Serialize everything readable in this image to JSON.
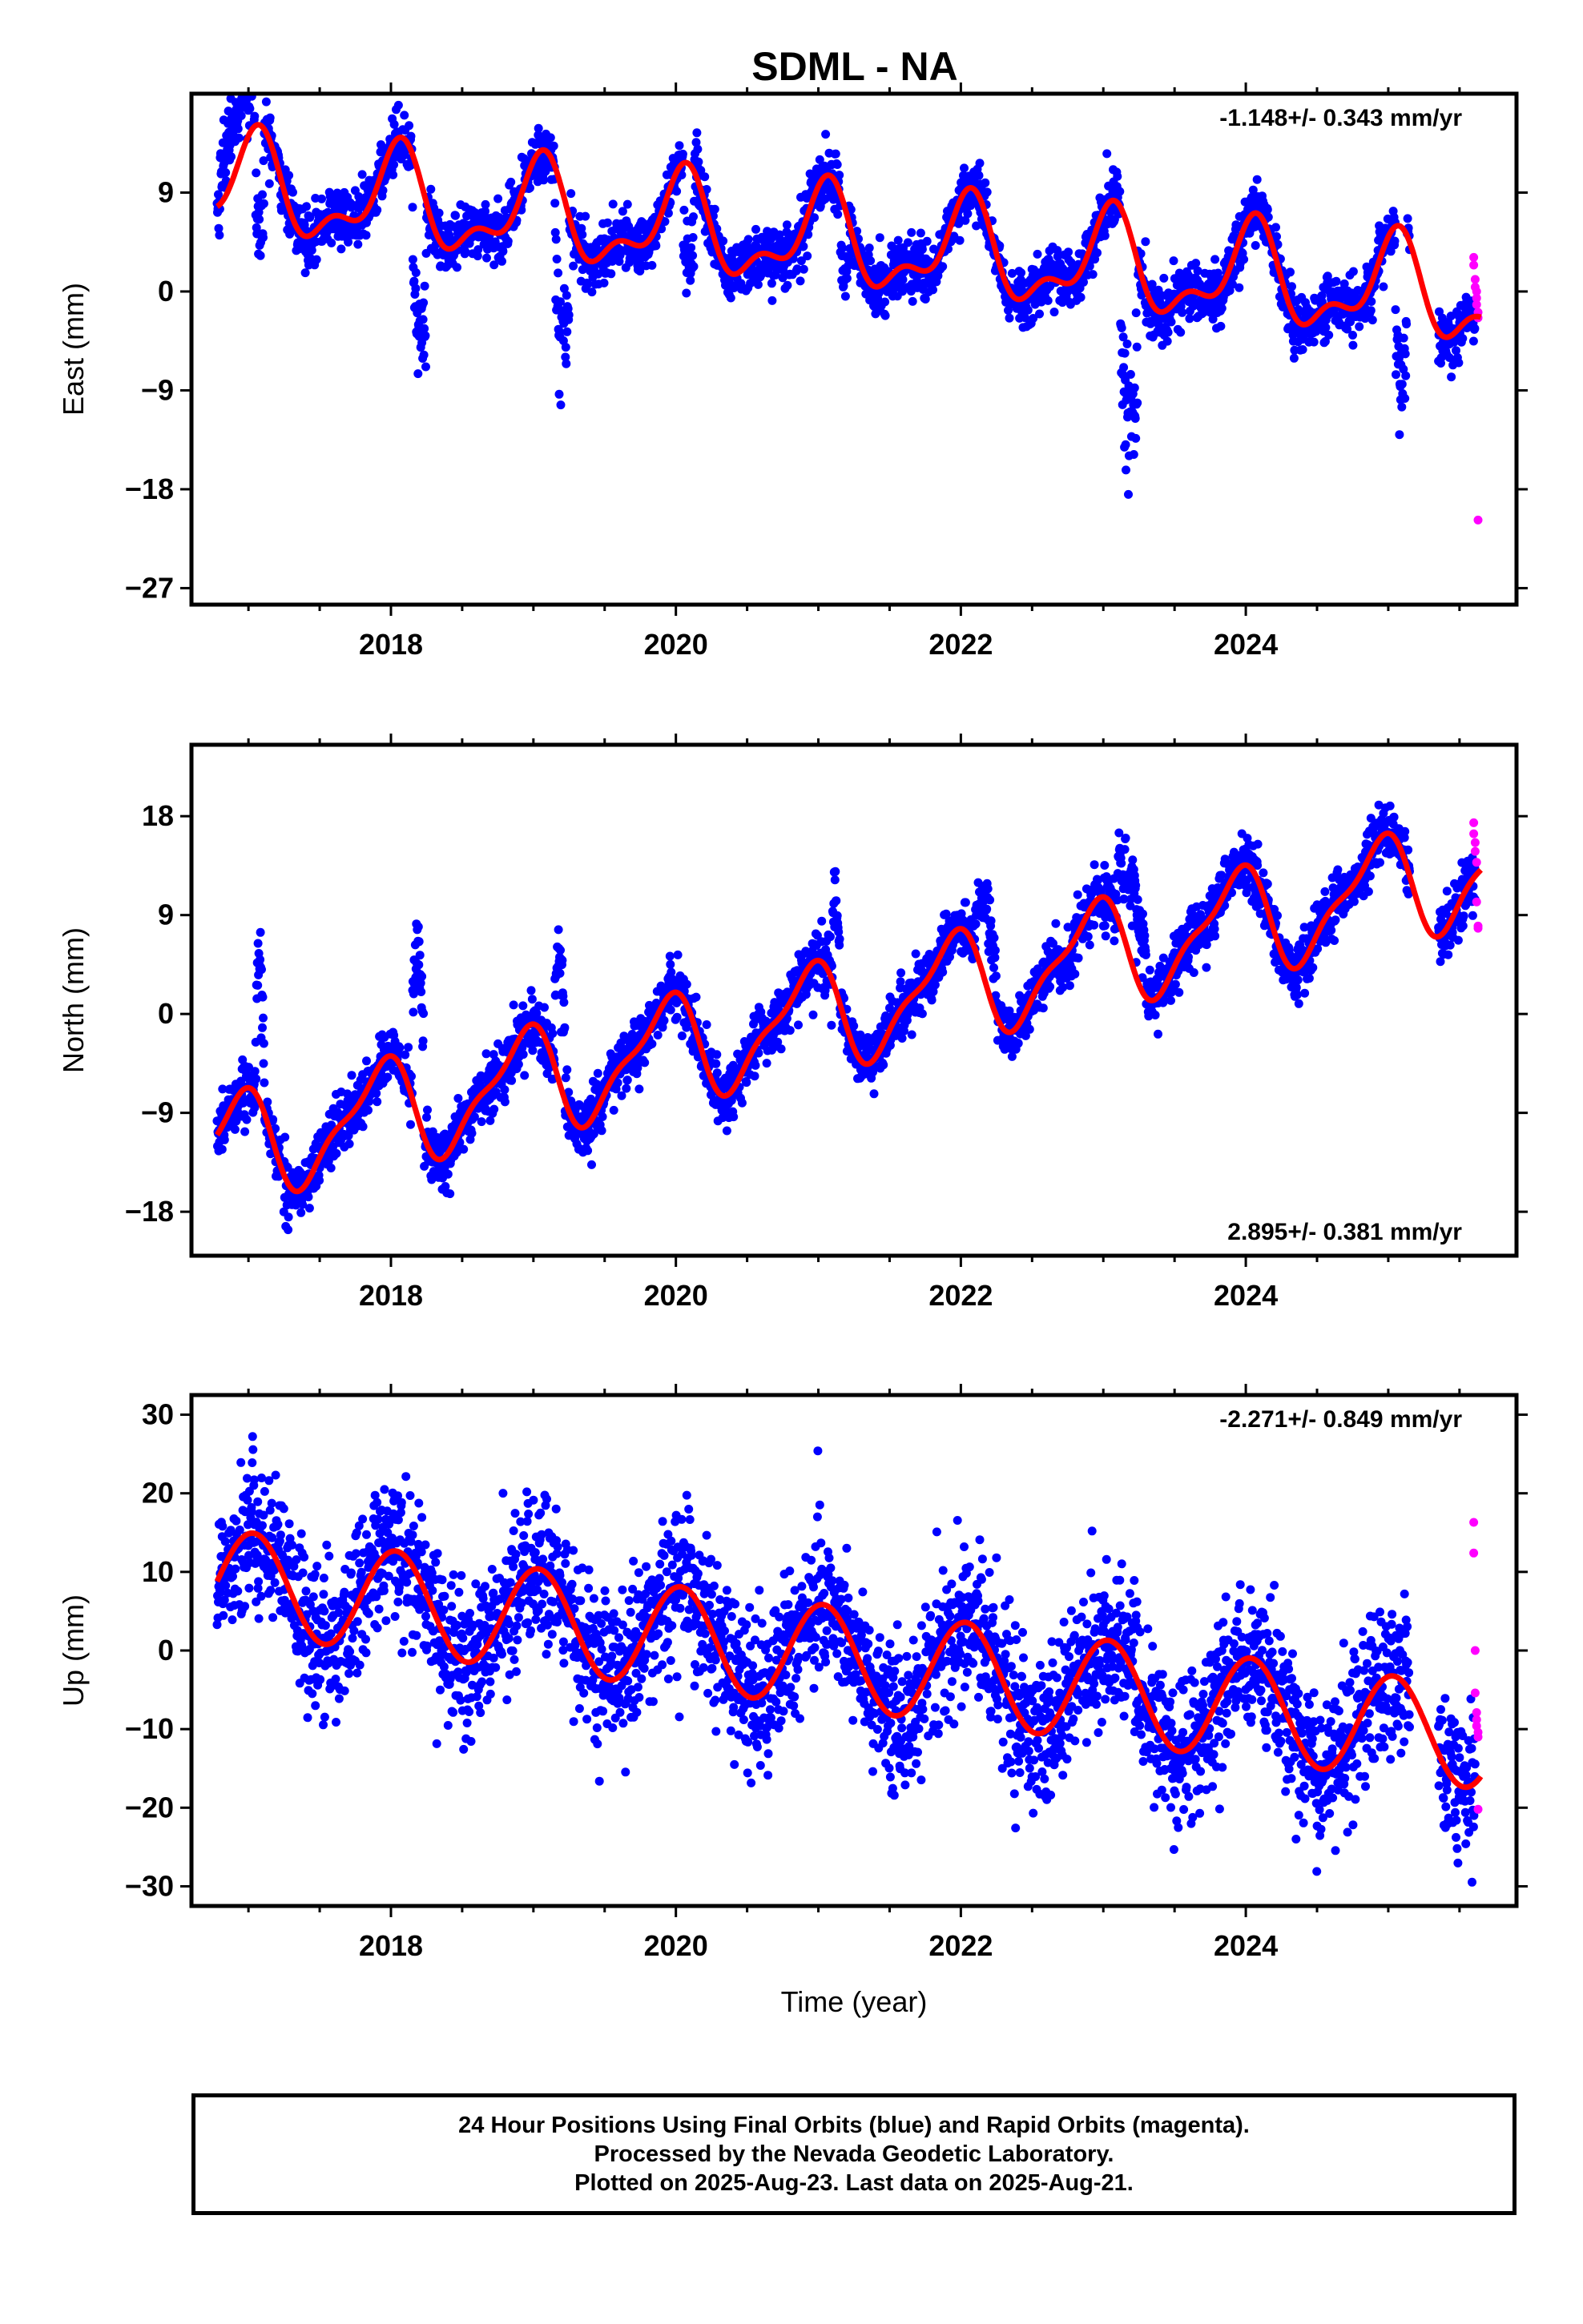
{
  "title": "SDML - NA",
  "colors": {
    "final": "#0000ff",
    "rapid": "#ff00ff",
    "model": "#ff0000",
    "frame": "#000000"
  },
  "footer": {
    "line1": "24 Hour Positions Using Final Orbits (blue) and Rapid Orbits (magenta).",
    "line2": "Processed by the Nevada Geodetic Laboratory.",
    "line3": "Plotted on 2025-Aug-23. Last data on 2025-Aug-21."
  },
  "chart_data": [
    {
      "type": "scatter",
      "id": "east",
      "ylabel": "East (mm)",
      "xlabel": "",
      "rate_label": "-1.148+/- 0.343 mm/yr",
      "rate_position": "top-right",
      "xlim": [
        2016.6,
        2025.9
      ],
      "ylim": [
        -28.5,
        18
      ],
      "yticks": [
        -27,
        -18,
        -9,
        0,
        9
      ],
      "xticks": [
        2018,
        2020,
        2022,
        2024
      ],
      "model": {
        "name": "model",
        "trend": -1.148,
        "intercept": 9.6,
        "t0": 2016.78,
        "annual_amp": 4.0,
        "annual_phase": 1.3,
        "semi_amp": 2.0,
        "semi_phase": 0.5,
        "x_range": [
          2016.78,
          2025.65
        ]
      },
      "final": {
        "noise": 1.3,
        "events": [
          {
            "t": 2016.8,
            "d": 0.25,
            "a": 5
          },
          {
            "t": 2017.05,
            "d": 0.06,
            "a": -10
          },
          {
            "t": 2018.15,
            "d": 0.1,
            "a": -14
          },
          {
            "t": 2019.15,
            "d": 0.1,
            "a": -13
          },
          {
            "t": 2020.05,
            "d": 0.08,
            "a": -9
          },
          {
            "t": 2021.15,
            "d": 0.06,
            "a": -6
          },
          {
            "t": 2023.12,
            "d": 0.12,
            "a": -18
          },
          {
            "t": 2025.05,
            "d": 0.08,
            "a": -14
          }
        ],
        "gaps": [
          [
            2025.15,
            2025.35
          ]
        ]
      },
      "rapid": {
        "x": [
          2025.6,
          2025.6,
          2025.61,
          2025.61,
          2025.62,
          2025.62,
          2025.62,
          2025.63,
          2025.63,
          2025.63
        ],
        "values": [
          3.1,
          2.4,
          1.1,
          0.4,
          0.0,
          -0.6,
          -1.2,
          -1.9,
          -2.4,
          -20.8
        ]
      }
    },
    {
      "type": "scatter",
      "id": "north",
      "ylabel": "North (mm)",
      "xlabel": "",
      "rate_label": "2.895+/- 0.381 mm/yr",
      "rate_position": "bottom-right",
      "xlim": [
        2016.6,
        2025.9
      ],
      "ylim": [
        -22,
        24.5
      ],
      "yticks": [
        -18,
        -9,
        0,
        9,
        18
      ],
      "xticks": [
        2018,
        2020,
        2022,
        2024
      ],
      "model": {
        "name": "model",
        "trend": 2.895,
        "intercept": -12.5,
        "t0": 2016.78,
        "annual_amp": 4.5,
        "annual_phase": 2.1,
        "semi_amp": 1.5,
        "semi_phase": 1.0,
        "x_range": [
          2016.78,
          2025.65
        ]
      },
      "final": {
        "noise": 1.3,
        "events": [
          {
            "t": 2017.05,
            "d": 0.06,
            "a": 12
          },
          {
            "t": 2018.15,
            "d": 0.08,
            "a": 15
          },
          {
            "t": 2019.15,
            "d": 0.07,
            "a": 10
          },
          {
            "t": 2021.1,
            "d": 0.05,
            "a": 9
          },
          {
            "t": 2022.1,
            "d": 0.15,
            "a": 7
          },
          {
            "t": 2023.1,
            "d": 0.2,
            "a": 7
          }
        ],
        "gaps": [
          [
            2025.15,
            2025.35
          ]
        ]
      },
      "rapid": {
        "x": [
          2025.6,
          2025.6,
          2025.61,
          2025.61,
          2025.62,
          2025.62,
          2025.63,
          2025.63
        ],
        "values": [
          17.4,
          16.4,
          15.6,
          14.8,
          13.8,
          10.2,
          8.0,
          7.8
        ]
      }
    },
    {
      "type": "scatter",
      "id": "up",
      "ylabel": "Up (mm)",
      "xlabel": "Time (year)",
      "rate_label": "-2.271+/- 0.849 mm/yr",
      "rate_position": "top-right",
      "xlim": [
        2016.6,
        2025.9
      ],
      "ylim": [
        -32.5,
        32.5
      ],
      "yticks": [
        -30,
        -20,
        -10,
        0,
        10,
        20,
        30
      ],
      "xticks": [
        2018,
        2020,
        2022,
        2024
      ],
      "model": {
        "name": "model",
        "trend": -2.271,
        "intercept": 9.0,
        "t0": 2016.78,
        "annual_amp": 6.5,
        "annual_phase": 1.35,
        "semi_amp": 0.0,
        "semi_phase": 0.0,
        "x_range": [
          2016.78,
          2025.65
        ]
      },
      "final": {
        "noise": 4.8,
        "events": [],
        "gaps": [
          [
            2025.15,
            2025.35
          ]
        ]
      },
      "rapid": {
        "x": [
          2025.6,
          2025.6,
          2025.61,
          2025.61,
          2025.62,
          2025.62,
          2025.62,
          2025.63,
          2025.63,
          2025.63
        ],
        "values": [
          16.3,
          12.4,
          0.0,
          -5.4,
          -7.9,
          -8.8,
          -9.6,
          -10.4,
          -11.0,
          -20.2
        ]
      }
    }
  ]
}
